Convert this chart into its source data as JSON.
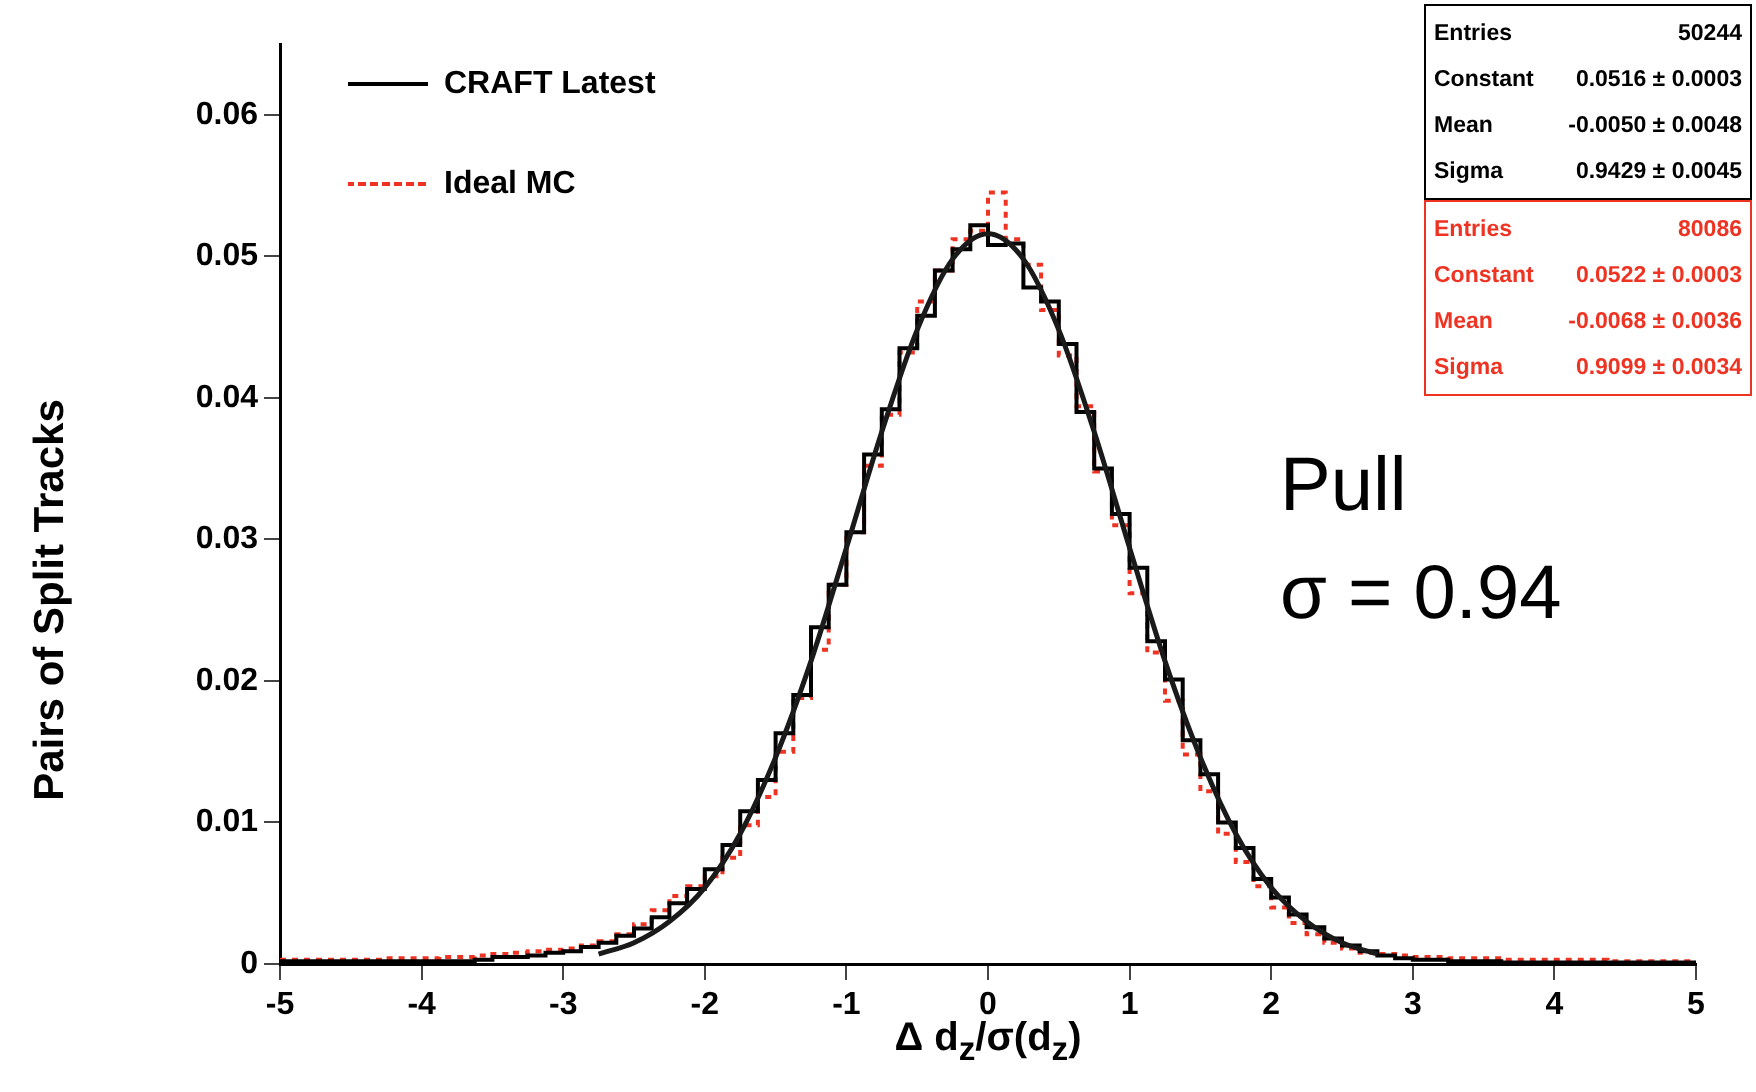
{
  "chart_data": {
    "type": "histogram",
    "xlabel": "Δ d$_{z}$/σ(d$_{z}$)",
    "ylabel": "Pairs of Split Tracks",
    "legend": "top left",
    "grid": false,
    "bins": [
      -5,
      -4.875,
      -4.75,
      -4.625,
      -4.5,
      -4.375,
      -4.25,
      -4.125,
      -4,
      -3.875,
      -3.75,
      -3.625,
      -3.5,
      -3.375,
      -3.25,
      -3.125,
      -3,
      -2.875,
      -2.75,
      -2.625,
      -2.5,
      -2.375,
      -2.25,
      -2.125,
      -2,
      -1.875,
      -1.75,
      -1.625,
      -1.5,
      -1.375,
      -1.25,
      -1.125,
      -1,
      -0.875,
      -0.75,
      -0.625,
      -0.5,
      -0.375,
      -0.25,
      -0.125,
      0,
      0.125,
      0.25,
      0.375,
      0.5,
      0.625,
      0.75,
      0.875,
      1,
      1.125,
      1.25,
      1.375,
      1.5,
      1.625,
      1.75,
      1.875,
      2,
      2.125,
      2.25,
      2.375,
      2.5,
      2.625,
      2.75,
      2.875,
      3,
      3.125,
      3.25,
      3.375,
      3.5,
      3.625,
      3.75,
      3.875,
      4,
      4.125,
      4.25,
      4.375,
      4.5,
      4.625,
      4.75,
      4.875,
      5
    ],
    "series": [
      {
        "name": "CRAFT Latest",
        "color": "#000000",
        "line_style": "solid",
        "values": [
          0.0002,
          0.0002,
          0.0002,
          0.0002,
          0.0002,
          0.0002,
          0.0002,
          0.0002,
          0.0002,
          0.0002,
          0.0002,
          0.0003,
          0.0005,
          0.0005,
          0.0006,
          0.0008,
          0.0009,
          0.0012,
          0.0015,
          0.002,
          0.0025,
          0.0033,
          0.0043,
          0.0053,
          0.0067,
          0.0084,
          0.0108,
          0.013,
          0.0163,
          0.019,
          0.0238,
          0.0268,
          0.0305,
          0.036,
          0.0392,
          0.0435,
          0.0458,
          0.049,
          0.0505,
          0.0522,
          0.0508,
          0.0509,
          0.0478,
          0.0468,
          0.0438,
          0.039,
          0.035,
          0.0318,
          0.028,
          0.0228,
          0.0201,
          0.0158,
          0.0134,
          0.01,
          0.0082,
          0.006,
          0.0047,
          0.0035,
          0.0026,
          0.0018,
          0.0013,
          0.0009,
          0.0006,
          0.0004,
          0.0003,
          0.0003,
          0.0002,
          0.0002,
          0.0002,
          0.0001,
          0.0001,
          0.0001,
          0.0001,
          0.0001,
          0.0001,
          0.0001,
          0.0001,
          0.0001,
          0.0001,
          0.0001
        ]
      },
      {
        "name": "Ideal MC",
        "color": "#ee3322",
        "line_style": "dotted",
        "values": [
          0.0003,
          0.0003,
          0.0003,
          0.0003,
          0.0003,
          0.0003,
          0.0004,
          0.0004,
          0.0004,
          0.0005,
          0.0005,
          0.0006,
          0.0007,
          0.0008,
          0.0009,
          0.001,
          0.0011,
          0.0013,
          0.0016,
          0.0021,
          0.0028,
          0.0038,
          0.0048,
          0.0055,
          0.0062,
          0.0075,
          0.0098,
          0.0118,
          0.015,
          0.0188,
          0.0222,
          0.0268,
          0.0305,
          0.0352,
          0.0388,
          0.0432,
          0.0468,
          0.049,
          0.0512,
          0.0518,
          0.0545,
          0.0512,
          0.0494,
          0.0462,
          0.043,
          0.0394,
          0.0348,
          0.031,
          0.0262,
          0.022,
          0.0186,
          0.0148,
          0.0122,
          0.0092,
          0.0072,
          0.0055,
          0.004,
          0.0029,
          0.0021,
          0.0015,
          0.0011,
          0.0008,
          0.0007,
          0.0006,
          0.0005,
          0.0005,
          0.0004,
          0.0004,
          0.0004,
          0.0003,
          0.0003,
          0.0003,
          0.0003,
          0.0003,
          0.0003,
          0.0002,
          0.0002,
          0.0002,
          0.0002,
          0.0002
        ]
      },
      {
        "type": "line",
        "color": "#1a1a1a",
        "x": [
          -2.75,
          -2.5,
          -2.25,
          -2,
          -1.75,
          -1.5,
          -1.25,
          -1,
          -0.75,
          -0.5,
          -0.25,
          0,
          0.25,
          0.5,
          0.75,
          1,
          1.25,
          1.5,
          1.75,
          2,
          2.25,
          2.5,
          2.75
        ],
        "values": [
          0.0007,
          0.0015,
          0.003,
          0.0054,
          0.0092,
          0.0146,
          0.0214,
          0.0294,
          0.0376,
          0.0448,
          0.0498,
          0.0516,
          0.0498,
          0.0448,
          0.0376,
          0.0294,
          0.0214,
          0.0146,
          0.0092,
          0.0054,
          0.003,
          0.0015,
          0.0007
        ]
      }
    ],
    "xlim": [
      -5,
      5
    ],
    "xticks": [
      -5,
      -4,
      -3,
      -2,
      -1,
      0,
      1,
      2,
      3,
      4,
      5
    ],
    "ylim": [
      0,
      0.065
    ],
    "yticks": [
      0,
      0.01,
      0.02,
      0.03,
      0.04,
      0.05,
      0.06
    ],
    "annotations": [
      "Entries 50244",
      "Constant 0.0516 ± 0.0003",
      "Mean -0.0050 ± 0.0048",
      "Sigma 0.9429 ± 0.0045",
      "Entries 80086",
      "Constant 0.0522 ± 0.0003",
      "Mean -0.0068 ± 0.0036",
      "Sigma 0.9099 ± 0.0034",
      "Pull",
      "σ = 0.94"
    ]
  }
}
